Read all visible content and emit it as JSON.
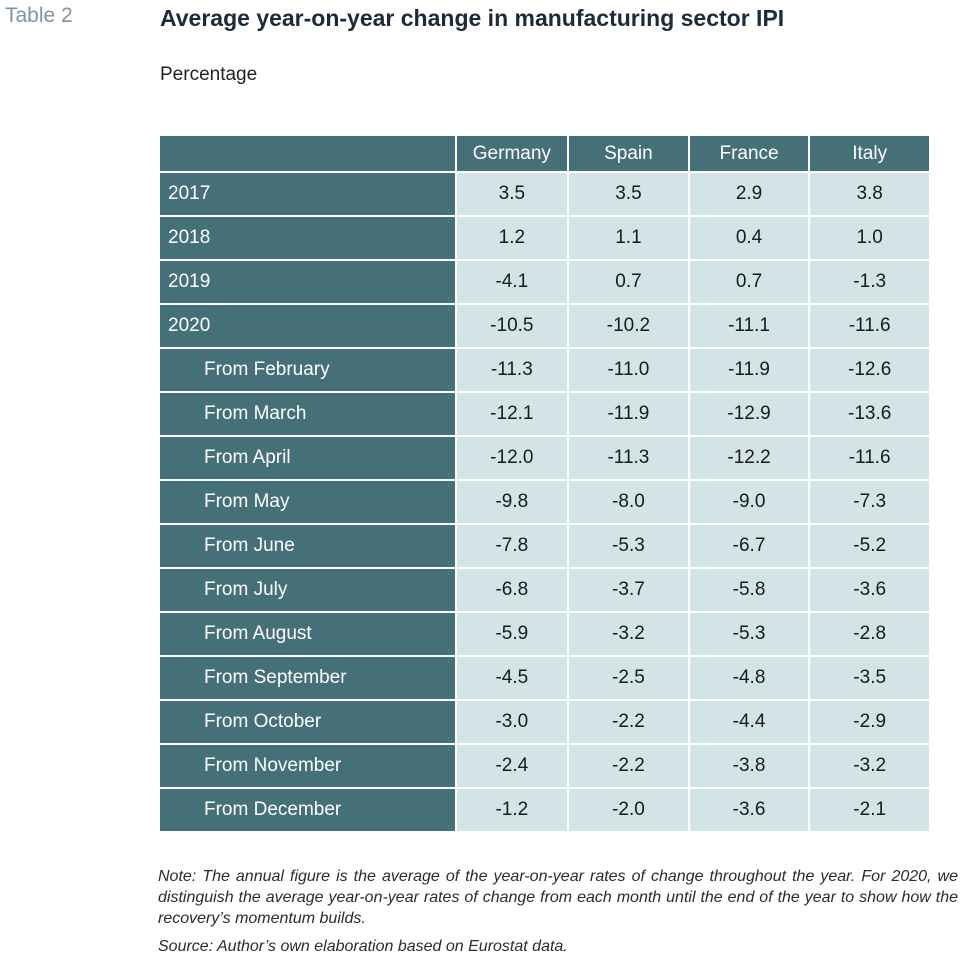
{
  "header": {
    "table_label": "Table 2",
    "title": "Average year-on-year change in manufacturing sector IPI",
    "subtitle": "Percentage"
  },
  "chart_data": {
    "type": "table",
    "columns": [
      "Germany",
      "Spain",
      "France",
      "Italy"
    ],
    "rows": [
      {
        "label": "2017",
        "indent": false,
        "values": [
          "3.5",
          "3.5",
          "2.9",
          "3.8"
        ]
      },
      {
        "label": "2018",
        "indent": false,
        "values": [
          "1.2",
          "1.1",
          "0.4",
          "1.0"
        ]
      },
      {
        "label": "2019",
        "indent": false,
        "values": [
          "-4.1",
          "0.7",
          "0.7",
          "-1.3"
        ]
      },
      {
        "label": "2020",
        "indent": false,
        "values": [
          "-10.5",
          "-10.2",
          "-11.1",
          "-11.6"
        ]
      },
      {
        "label": "From February",
        "indent": true,
        "values": [
          "-11.3",
          "-11.0",
          "-11.9",
          "-12.6"
        ]
      },
      {
        "label": "From March",
        "indent": true,
        "values": [
          "-12.1",
          "-11.9",
          "-12.9",
          "-13.6"
        ]
      },
      {
        "label": "From April",
        "indent": true,
        "values": [
          "-12.0",
          "-11.3",
          "-12.2",
          "-11.6"
        ]
      },
      {
        "label": "From May",
        "indent": true,
        "values": [
          "-9.8",
          "-8.0",
          "-9.0",
          "-7.3"
        ]
      },
      {
        "label": "From June",
        "indent": true,
        "values": [
          "-7.8",
          "-5.3",
          "-6.7",
          "-5.2"
        ]
      },
      {
        "label": "From July",
        "indent": true,
        "values": [
          "-6.8",
          "-3.7",
          "-5.8",
          "-3.6"
        ]
      },
      {
        "label": "From August",
        "indent": true,
        "values": [
          "-5.9",
          "-3.2",
          "-5.3",
          "-2.8"
        ]
      },
      {
        "label": "From September",
        "indent": true,
        "values": [
          "-4.5",
          "-2.5",
          "-4.8",
          "-3.5"
        ]
      },
      {
        "label": "From October",
        "indent": true,
        "values": [
          "-3.0",
          "-2.2",
          "-4.4",
          "-2.9"
        ]
      },
      {
        "label": "From November",
        "indent": true,
        "values": [
          "-2.4",
          "-2.2",
          "-3.8",
          "-3.2"
        ]
      },
      {
        "label": "From December",
        "indent": true,
        "values": [
          "-1.2",
          "-2.0",
          "-3.6",
          "-2.1"
        ]
      }
    ]
  },
  "footer": {
    "note": "Note: The annual figure is the average of the year-on-year rates of change throughout the year. For 2020, we distinguish the average year-on-year rates of change from each month until the end of the year to show how the recovery’s momentum builds.",
    "source": "Source: Author’s own elaboration based on Eurostat data."
  },
  "colors": {
    "header_bg": "#467078",
    "cell_bg": "#d3e4e6",
    "label_color": "#7f93a6"
  }
}
